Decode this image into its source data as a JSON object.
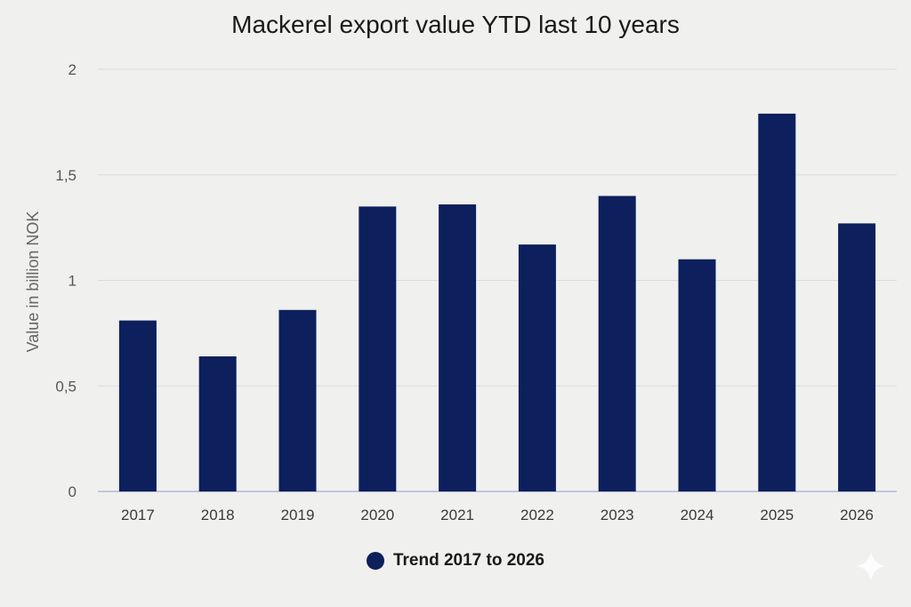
{
  "chart_data": {
    "type": "bar",
    "title": "Mackerel export value YTD last 10 years",
    "xlabel": "",
    "ylabel": "Value in billion NOK",
    "categories": [
      "2017",
      "2018",
      "2019",
      "2020",
      "2021",
      "2022",
      "2023",
      "2024",
      "2025",
      "2026"
    ],
    "series": [
      {
        "name": "Trend 2017 to 2026",
        "values": [
          0.81,
          0.64,
          0.86,
          1.35,
          1.36,
          1.17,
          1.4,
          1.1,
          1.79,
          1.27
        ]
      }
    ],
    "ylim": [
      0,
      2
    ],
    "yticks": [
      0,
      0.5,
      1,
      1.5,
      2
    ],
    "ytick_labels": [
      "0",
      "0,5",
      "1",
      "1,5",
      "2"
    ],
    "grid": true,
    "legend_position": "bottom-center",
    "colors": {
      "bar": "#0d1f5c",
      "grid": "#dcdcd8",
      "axis": "#a9b9d9"
    }
  },
  "decoration": {
    "corner_icon": "sparkle-icon"
  }
}
